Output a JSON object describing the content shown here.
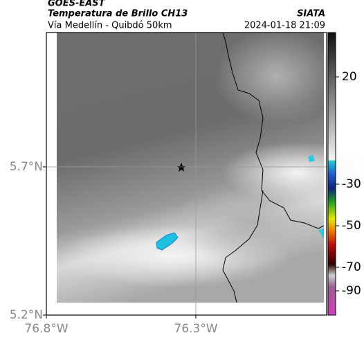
{
  "header": {
    "satellite": "GOES-EAST",
    "title": "Temperatura de Brillo CH13",
    "source": "SIATA",
    "route": "Vía Medellín - Quibdó 50km",
    "datetime": "2024-01-18 21:09"
  },
  "map": {
    "lat_labels": [
      "5.7°N",
      "5.2°N"
    ],
    "lon_labels": [
      "76.8°W",
      "76.3°W"
    ]
  },
  "colorbar": {
    "ticks": [
      20,
      -30,
      -50,
      -70,
      -90
    ]
  }
}
